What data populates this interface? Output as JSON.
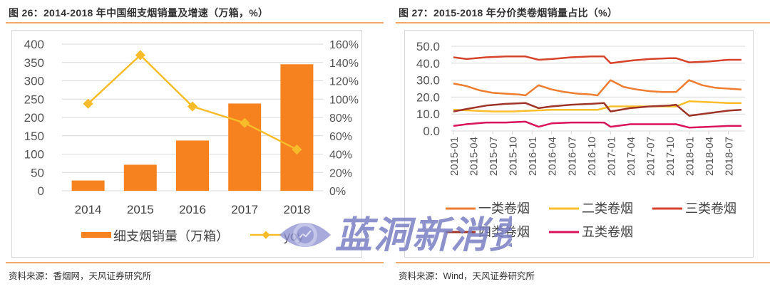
{
  "left": {
    "title": "图 26：2014-2018 年中国细支烟销量及增速（万箱，%）",
    "source": "资料来源：香烟网，天风证券研究所",
    "legend": {
      "bar": "细支烟销量（万箱）",
      "line": "yoy"
    }
  },
  "right": {
    "title": "图 27：2015-2018 年分价类卷烟销量占比（%）",
    "source": "资料来源：Wind，天风证券研究所",
    "legend": [
      "一类卷烟",
      "二类卷烟",
      "三类卷烟",
      "四类卷烟",
      "五类卷烟"
    ]
  },
  "watermark": {
    "text": "蓝洞新消费"
  },
  "colors": {
    "bar": "#f5821f",
    "yoy": "#f7bc2a",
    "class1": "#ee7d31",
    "class2": "#fbbd2c",
    "class3": "#d5432a",
    "class4": "#9e3428",
    "class5": "#d8135a",
    "grid": "#d9d9d9",
    "rule": "#f3a96a",
    "watermark": "#7b7fc4"
  },
  "chart_data": [
    {
      "type": "bar",
      "title": "2014-2018年中国细支烟销量及增速（万箱，%）",
      "categories": [
        "2014",
        "2015",
        "2016",
        "2017",
        "2018"
      ],
      "series": [
        {
          "name": "细支烟销量（万箱）",
          "type": "bar",
          "axis": "left",
          "values": [
            28,
            71,
            137,
            238,
            345
          ]
        },
        {
          "name": "yoy",
          "type": "line",
          "axis": "right",
          "values": [
            95,
            148,
            92,
            74,
            45
          ],
          "unit": "%"
        }
      ],
      "ylim": [
        0,
        400
      ],
      "yticks": [
        0,
        50,
        100,
        150,
        200,
        250,
        300,
        350,
        400
      ],
      "y2lim": [
        0,
        160
      ],
      "y2ticks": [
        "0%",
        "20%",
        "40%",
        "60%",
        "80%",
        "100%",
        "120%",
        "140%",
        "160%"
      ],
      "grid": true,
      "legend_position": "bottom"
    },
    {
      "type": "line",
      "title": "2015-2018年分价类卷烟销量占比（%）",
      "xticks": [
        "2015-01",
        "2015-04",
        "2015-07",
        "2015-10",
        "2016-01",
        "2016-04",
        "2016-07",
        "2016-10",
        "2017-01",
        "2017-04",
        "2017-07",
        "2017-10",
        "2018-01",
        "2018-04",
        "2018-07"
      ],
      "x_start": "2015-01",
      "x_end": "2018-09",
      "series": [
        {
          "name": "一类卷烟",
          "x": [
            "2015-01",
            "2015-03",
            "2015-05",
            "2015-07",
            "2015-09",
            "2015-11",
            "2015-12",
            "2016-02",
            "2016-04",
            "2016-06",
            "2016-08",
            "2016-10",
            "2016-11",
            "2017-01",
            "2017-03",
            "2017-05",
            "2017-07",
            "2017-09",
            "2017-11",
            "2018-01",
            "2018-03",
            "2018-05",
            "2018-07",
            "2018-09"
          ],
          "values": [
            28,
            26.5,
            24,
            22.5,
            22,
            21.5,
            21,
            27,
            24.5,
            23,
            22,
            21.5,
            21,
            30,
            26,
            24.5,
            23.5,
            23,
            23,
            30,
            27,
            25.5,
            25,
            24.5
          ]
        },
        {
          "name": "二类卷烟",
          "x": [
            "2015-01",
            "2015-04",
            "2015-07",
            "2015-10",
            "2016-01",
            "2016-04",
            "2016-07",
            "2016-10",
            "2016-11",
            "2017-01",
            "2017-04",
            "2017-07",
            "2017-10",
            "2017-11",
            "2018-01",
            "2018-04",
            "2018-07",
            "2018-09"
          ],
          "values": [
            12.5,
            12,
            11.5,
            11.5,
            12,
            12.5,
            12.5,
            12.5,
            12.5,
            14.5,
            14.5,
            14.5,
            14.5,
            14.5,
            17.5,
            17,
            16.5,
            16.5
          ]
        },
        {
          "name": "三类卷烟",
          "x": [
            "2015-01",
            "2015-03",
            "2015-06",
            "2015-09",
            "2015-12",
            "2016-02",
            "2016-04",
            "2016-07",
            "2016-10",
            "2016-12",
            "2017-01",
            "2017-04",
            "2017-07",
            "2017-10",
            "2017-11",
            "2018-01",
            "2018-04",
            "2018-07",
            "2018-09"
          ],
          "values": [
            43.5,
            42.5,
            43.5,
            44,
            44,
            42,
            42.5,
            43.5,
            44,
            44,
            40,
            41.5,
            42.5,
            43,
            43,
            40.5,
            41,
            42,
            42
          ]
        },
        {
          "name": "四类卷烟",
          "x": [
            "2015-01",
            "2015-03",
            "2015-06",
            "2015-09",
            "2015-12",
            "2016-02",
            "2016-04",
            "2016-07",
            "2016-10",
            "2016-12",
            "2017-01",
            "2017-04",
            "2017-07",
            "2017-10",
            "2017-11",
            "2018-01",
            "2018-04",
            "2018-07",
            "2018-09"
          ],
          "values": [
            11.5,
            13,
            15,
            16,
            16.5,
            13.5,
            14.5,
            15.5,
            16,
            16.5,
            11.5,
            13.5,
            14.5,
            15,
            15.5,
            9,
            10.5,
            12,
            12.5
          ]
        },
        {
          "name": "五类卷烟",
          "x": [
            "2015-01",
            "2015-03",
            "2015-06",
            "2015-09",
            "2015-12",
            "2016-02",
            "2016-04",
            "2016-07",
            "2016-10",
            "2016-12",
            "2017-01",
            "2017-04",
            "2017-07",
            "2017-10",
            "2017-11",
            "2018-01",
            "2018-04",
            "2018-07",
            "2018-09"
          ],
          "values": [
            3,
            4,
            5,
            5,
            5.5,
            2.5,
            4.5,
            5,
            5,
            5,
            2.5,
            4,
            4,
            4,
            4,
            2,
            2.5,
            3,
            3
          ]
        }
      ],
      "ylim": [
        0,
        50
      ],
      "yticks": [
        "0.0",
        "10.0",
        "20.0",
        "30.0",
        "40.0",
        "50.0"
      ],
      "grid": true,
      "legend_position": "bottom"
    }
  ]
}
